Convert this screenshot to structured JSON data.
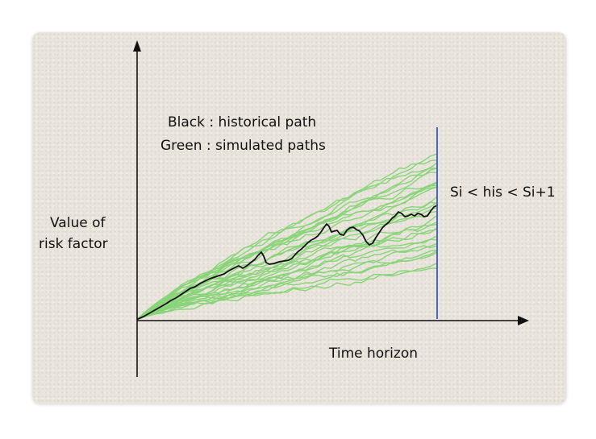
{
  "legend": {
    "black_label": "Black : historical path",
    "green_label": "Green : simulated paths"
  },
  "y_axis_label": [
    "Value of",
    "risk factor"
  ],
  "x_axis_label": "Time horizon",
  "threshold_label": "Si < his < Si+1",
  "colors": {
    "background": "#e9e5dc",
    "axis": "#111111",
    "historical": "#111111",
    "simulated": "#7fd36e",
    "threshold": "#3b57c8"
  }
}
